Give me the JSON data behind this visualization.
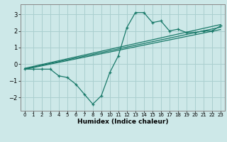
{
  "title": "",
  "xlabel": "Humidex (Indice chaleur)",
  "bg_color": "#cde8e8",
  "grid_color": "#aacfcf",
  "line_color": "#1a7a6a",
  "xlim": [
    -0.5,
    23.5
  ],
  "ylim": [
    -2.8,
    3.6
  ],
  "xticks": [
    0,
    1,
    2,
    3,
    4,
    5,
    6,
    7,
    8,
    9,
    10,
    11,
    12,
    13,
    14,
    15,
    16,
    17,
    18,
    19,
    20,
    21,
    22,
    23
  ],
  "yticks": [
    -2,
    -1,
    0,
    1,
    2,
    3
  ],
  "main_x": [
    0,
    1,
    2,
    3,
    4,
    5,
    6,
    7,
    8,
    9,
    10,
    11,
    12,
    13,
    14,
    15,
    16,
    17,
    18,
    19,
    20,
    21,
    22,
    23
  ],
  "main_y": [
    -0.3,
    -0.3,
    -0.3,
    -0.3,
    -0.7,
    -0.8,
    -1.2,
    -1.8,
    -2.4,
    -1.9,
    -0.5,
    0.5,
    2.2,
    3.1,
    3.1,
    2.5,
    2.6,
    2.0,
    2.1,
    1.9,
    1.9,
    2.0,
    2.0,
    2.3
  ],
  "line1_x": [
    0,
    23
  ],
  "line1_y": [
    -0.25,
    2.38
  ],
  "line2_x": [
    0,
    23
  ],
  "line2_y": [
    -0.28,
    2.22
  ],
  "line3_x": [
    0,
    23
  ],
  "line3_y": [
    -0.31,
    2.08
  ]
}
